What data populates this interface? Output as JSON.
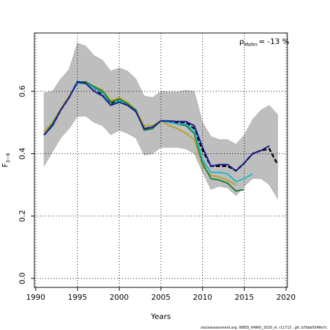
{
  "chart_data": {
    "type": "line",
    "xlabel": "Years",
    "ylabel": "F",
    "ylabel_subscript": "3−6",
    "annotation_symbol": "ρ",
    "annotation_subscript": "Mohn",
    "annotation_text": "= -13 %",
    "footer": "stockassessment.org, WBSS_HAWG_2020_sf, r11713 , git: b7bbb5048e7c",
    "x": [
      1991,
      1992,
      1993,
      1994,
      1995,
      1996,
      1997,
      1998,
      1999,
      2000,
      2001,
      2002,
      2003,
      2004,
      2005,
      2006,
      2007,
      2008,
      2009,
      2010,
      2011,
      2012,
      2013,
      2014,
      2015,
      2016,
      2017,
      2018,
      2019
    ],
    "band": {
      "color": "#bebebe",
      "upper": [
        0.595,
        0.6,
        0.64,
        0.67,
        0.755,
        0.745,
        0.715,
        0.7,
        0.665,
        0.675,
        0.665,
        0.64,
        0.585,
        0.58,
        0.6,
        0.598,
        0.598,
        0.603,
        0.6,
        0.5,
        0.455,
        0.445,
        0.445,
        0.43,
        0.46,
        0.51,
        0.54,
        0.555,
        0.525
      ],
      "lower": [
        0.36,
        0.405,
        0.45,
        0.48,
        0.52,
        0.52,
        0.5,
        0.49,
        0.46,
        0.475,
        0.465,
        0.45,
        0.395,
        0.4,
        0.42,
        0.42,
        0.42,
        0.415,
        0.4,
        0.34,
        0.285,
        0.295,
        0.29,
        0.265,
        0.295,
        0.32,
        0.32,
        0.3,
        0.255
      ]
    },
    "series": [
      {
        "color": "#000000",
        "dashed": true,
        "values": [
          0.46,
          0.49,
          0.54,
          0.58,
          0.63,
          0.63,
          0.61,
          0.59,
          0.56,
          0.57,
          0.56,
          0.54,
          0.48,
          0.485,
          0.505,
          0.503,
          0.5,
          0.5,
          0.48,
          0.41,
          0.36,
          0.36,
          0.36,
          0.345,
          0.37,
          0.4,
          0.41,
          0.415,
          0.365
        ]
      },
      {
        "color": "#b8a02a",
        "values": [
          0.47,
          0.5,
          0.545,
          0.585,
          0.625,
          0.625,
          0.615,
          0.605,
          0.57,
          0.58,
          0.565,
          0.54,
          0.49,
          0.49,
          0.505,
          0.49,
          0.48,
          0.465,
          0.445,
          0.36,
          0.33,
          0.325,
          0.315,
          0.3,
          null,
          null,
          null,
          null,
          null
        ]
      },
      {
        "color": "#1b7f3a",
        "values": [
          0.46,
          0.495,
          0.54,
          0.58,
          0.63,
          0.63,
          0.615,
          0.6,
          0.565,
          0.575,
          0.56,
          0.54,
          0.475,
          0.48,
          0.505,
          0.5,
          0.495,
          0.49,
          0.465,
          0.37,
          0.32,
          0.315,
          0.305,
          0.28,
          0.285,
          null,
          null,
          null,
          null
        ]
      },
      {
        "color": "#20b8c8",
        "values": [
          0.46,
          0.49,
          0.54,
          0.58,
          0.625,
          0.625,
          0.61,
          0.595,
          0.555,
          0.57,
          0.555,
          0.535,
          0.48,
          0.485,
          0.505,
          0.5,
          0.495,
          0.495,
          0.475,
          0.38,
          0.34,
          0.34,
          0.335,
          0.31,
          0.32,
          0.335,
          null,
          null,
          null
        ]
      },
      {
        "color": "#1a1a8c",
        "values": [
          0.46,
          0.49,
          0.54,
          0.58,
          0.63,
          0.625,
          0.6,
          0.585,
          0.555,
          0.565,
          0.555,
          0.535,
          0.48,
          0.485,
          0.505,
          0.505,
          0.503,
          0.503,
          0.49,
          0.42,
          0.36,
          0.365,
          0.365,
          0.345,
          0.37,
          0.4,
          0.41,
          0.425,
          null
        ]
      }
    ],
    "xlim": [
      1989.84,
      2020.16
    ],
    "ylim": [
      -0.029,
      0.787
    ],
    "xticks": [
      1990,
      1995,
      2000,
      2005,
      2010,
      2015,
      2020
    ],
    "yticks": [
      {
        "value": 0,
        "label": "0.0"
      },
      0.2,
      0.4,
      0.6
    ],
    "grid": true
  }
}
